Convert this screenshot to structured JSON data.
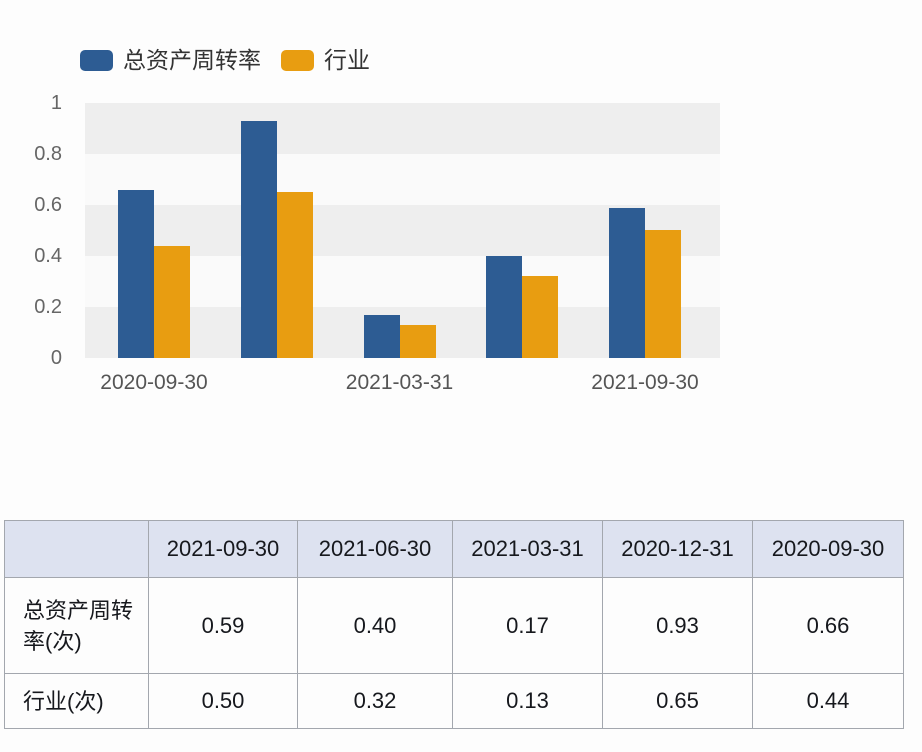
{
  "chart_data": {
    "type": "bar",
    "title": "",
    "categories": [
      "2020-09-30",
      "2020-12-31",
      "2021-03-31",
      "2021-06-30",
      "2021-09-30"
    ],
    "series": [
      {
        "name": "总资产周转率",
        "color": "#2d5c93",
        "values": [
          0.66,
          0.93,
          0.17,
          0.4,
          0.59
        ]
      },
      {
        "name": "行业",
        "color": "#e89d11",
        "values": [
          0.44,
          0.65,
          0.13,
          0.32,
          0.5
        ]
      }
    ],
    "xlabel": "",
    "ylabel": "",
    "ylim": [
      0,
      1
    ],
    "y_tick_labels": [
      "1",
      "0.8",
      "0.6",
      "0.4",
      "0.2",
      "0"
    ],
    "visible_x_tick_labels": [
      "2020-09-30",
      "2021-03-31",
      "2021-09-30"
    ],
    "visible_x_tick_groups": [
      0,
      2,
      4
    ],
    "legend_position": "top-left",
    "grid": "alternating-horizontal-bands"
  },
  "table": {
    "columns": [
      "",
      "2021-09-30",
      "2021-06-30",
      "2021-03-31",
      "2020-12-31",
      "2020-09-30"
    ],
    "rows": [
      {
        "label": "总资产周转率(次)",
        "values": [
          "0.59",
          "0.40",
          "0.17",
          "0.93",
          "0.66"
        ]
      },
      {
        "label": "行业(次)",
        "values": [
          "0.50",
          "0.32",
          "0.13",
          "0.65",
          "0.44"
        ]
      }
    ]
  },
  "colors": {
    "series_main": "#2d5c93",
    "series_industry": "#e89d11",
    "band_gray": "#eeeeee",
    "band_light": "#fafafa",
    "table_header_bg": "#dde2f0",
    "table_border": "#a3a7ae",
    "axis_text": "#666666",
    "legend_text": "#333333"
  }
}
